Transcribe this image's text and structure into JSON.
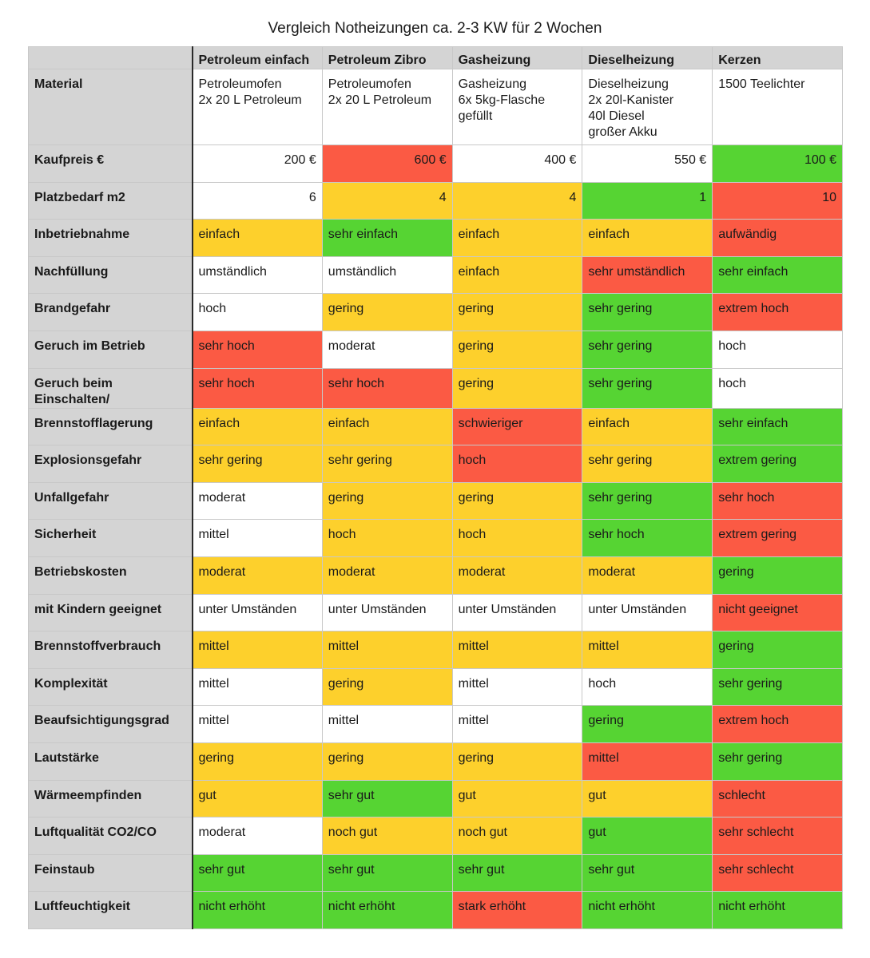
{
  "title": "Vergleich Notheizungen ca. 2-3 KW für 2 Wochen",
  "colors": {
    "white": "#ffffff",
    "yellow": "#fdd02c",
    "green": "#56d433",
    "red": "#fb5a44",
    "header": "#d4d4d4"
  },
  "columns": [
    "Petroleum einfach",
    "Petroleum Zibro",
    "Gasheizung",
    "Dieselheizung",
    "Kerzen"
  ],
  "material": {
    "label": "Material",
    "cells": [
      [
        "Petroleumofen",
        "2x 20 L Petroleum"
      ],
      [
        "Petroleumofen",
        "2x 20 L Petroleum"
      ],
      [
        "Gasheizung",
        "6x 5kg-Flasche",
        "gefüllt"
      ],
      [
        "Dieselheizung",
        "2x 20l-Kanister",
        "40l Diesel",
        "großer Akku"
      ],
      [
        "1500 Teelichter"
      ]
    ]
  },
  "rows": [
    {
      "label": "Kaufpreis €",
      "numeric": true,
      "cells": [
        {
          "text": "200 €",
          "color": "w"
        },
        {
          "text": "600 €",
          "color": "r"
        },
        {
          "text": "400 €",
          "color": "w"
        },
        {
          "text": "550 €",
          "color": "w"
        },
        {
          "text": "100 €",
          "color": "g"
        }
      ]
    },
    {
      "label": "Platzbedarf m2",
      "numeric": true,
      "cells": [
        {
          "text": "6",
          "color": "w"
        },
        {
          "text": "4",
          "color": "y"
        },
        {
          "text": "4",
          "color": "y"
        },
        {
          "text": "1",
          "color": "g"
        },
        {
          "text": "10",
          "color": "r"
        }
      ]
    },
    {
      "label": "Inbetriebnahme",
      "cells": [
        {
          "text": "einfach",
          "color": "y"
        },
        {
          "text": "sehr einfach",
          "color": "g"
        },
        {
          "text": "einfach",
          "color": "y"
        },
        {
          "text": "einfach",
          "color": "y"
        },
        {
          "text": "aufwändig",
          "color": "r"
        }
      ]
    },
    {
      "label": "Nachfüllung",
      "cells": [
        {
          "text": "umständlich",
          "color": "w"
        },
        {
          "text": "umständlich",
          "color": "w"
        },
        {
          "text": "einfach",
          "color": "y"
        },
        {
          "text": "sehr umständlich",
          "color": "r"
        },
        {
          "text": "sehr einfach",
          "color": "g"
        }
      ]
    },
    {
      "label": "Brandgefahr",
      "cells": [
        {
          "text": "hoch",
          "color": "w"
        },
        {
          "text": "gering",
          "color": "y"
        },
        {
          "text": "gering",
          "color": "y"
        },
        {
          "text": "sehr gering",
          "color": "g"
        },
        {
          "text": "extrem hoch",
          "color": "r"
        }
      ]
    },
    {
      "label": "Geruch im Betrieb",
      "cells": [
        {
          "text": "sehr hoch",
          "color": "r"
        },
        {
          "text": "moderat",
          "color": "w"
        },
        {
          "text": "gering",
          "color": "y"
        },
        {
          "text": "sehr gering",
          "color": "g"
        },
        {
          "text": "hoch",
          "color": "w"
        }
      ]
    },
    {
      "label": "Geruch beim Einschalten/",
      "cells": [
        {
          "text": "sehr hoch",
          "color": "r"
        },
        {
          "text": "sehr hoch",
          "color": "r"
        },
        {
          "text": "gering",
          "color": "y"
        },
        {
          "text": "sehr gering",
          "color": "g"
        },
        {
          "text": "hoch",
          "color": "w"
        }
      ]
    },
    {
      "label": "Brennstofflagerung",
      "cells": [
        {
          "text": "einfach",
          "color": "y"
        },
        {
          "text": "einfach",
          "color": "y"
        },
        {
          "text": "schwieriger",
          "color": "r"
        },
        {
          "text": "einfach",
          "color": "y"
        },
        {
          "text": "sehr einfach",
          "color": "g"
        }
      ]
    },
    {
      "label": "Explosionsgefahr",
      "cells": [
        {
          "text": "sehr gering",
          "color": "y"
        },
        {
          "text": "sehr gering",
          "color": "y"
        },
        {
          "text": "hoch",
          "color": "r"
        },
        {
          "text": "sehr gering",
          "color": "y"
        },
        {
          "text": "extrem gering",
          "color": "g"
        }
      ]
    },
    {
      "label": "Unfallgefahr",
      "cells": [
        {
          "text": "moderat",
          "color": "w"
        },
        {
          "text": "gering",
          "color": "y"
        },
        {
          "text": "gering",
          "color": "y"
        },
        {
          "text": "sehr gering",
          "color": "g"
        },
        {
          "text": "sehr hoch",
          "color": "r"
        }
      ]
    },
    {
      "label": "Sicherheit",
      "cells": [
        {
          "text": "mittel",
          "color": "w"
        },
        {
          "text": "hoch",
          "color": "y"
        },
        {
          "text": "hoch",
          "color": "y"
        },
        {
          "text": "sehr hoch",
          "color": "g"
        },
        {
          "text": "extrem gering",
          "color": "r"
        }
      ]
    },
    {
      "label": "Betriebskosten",
      "cells": [
        {
          "text": "moderat",
          "color": "y"
        },
        {
          "text": "moderat",
          "color": "y"
        },
        {
          "text": "moderat",
          "color": "y"
        },
        {
          "text": "moderat",
          "color": "y"
        },
        {
          "text": "gering",
          "color": "g"
        }
      ]
    },
    {
      "label": "mit Kindern geeignet",
      "cells": [
        {
          "text": "unter Umständen",
          "color": "w"
        },
        {
          "text": "unter Umständen",
          "color": "w"
        },
        {
          "text": "unter Umständen",
          "color": "w"
        },
        {
          "text": "unter Umständen",
          "color": "w"
        },
        {
          "text": "nicht geeignet",
          "color": "r"
        }
      ]
    },
    {
      "label": "Brennstoffverbrauch",
      "cells": [
        {
          "text": "mittel",
          "color": "y"
        },
        {
          "text": "mittel",
          "color": "y"
        },
        {
          "text": "mittel",
          "color": "y"
        },
        {
          "text": "mittel",
          "color": "y"
        },
        {
          "text": "gering",
          "color": "g"
        }
      ]
    },
    {
      "label": "Komplexität",
      "cells": [
        {
          "text": "mittel",
          "color": "w"
        },
        {
          "text": "gering",
          "color": "y"
        },
        {
          "text": "mittel",
          "color": "w"
        },
        {
          "text": "hoch",
          "color": "w"
        },
        {
          "text": "sehr gering",
          "color": "g"
        }
      ]
    },
    {
      "label": "Beaufsichtigungsgrad",
      "cells": [
        {
          "text": "mittel",
          "color": "w"
        },
        {
          "text": "mittel",
          "color": "w"
        },
        {
          "text": "mittel",
          "color": "w"
        },
        {
          "text": "gering",
          "color": "g"
        },
        {
          "text": "extrem hoch",
          "color": "r"
        }
      ]
    },
    {
      "label": "Lautstärke",
      "cells": [
        {
          "text": "gering",
          "color": "y"
        },
        {
          "text": "gering",
          "color": "y"
        },
        {
          "text": "gering",
          "color": "y"
        },
        {
          "text": "mittel",
          "color": "r"
        },
        {
          "text": "sehr gering",
          "color": "g"
        }
      ]
    },
    {
      "label": "Wärmeempfinden",
      "cells": [
        {
          "text": "gut",
          "color": "y"
        },
        {
          "text": "sehr gut",
          "color": "g"
        },
        {
          "text": "gut",
          "color": "y"
        },
        {
          "text": "gut",
          "color": "y"
        },
        {
          "text": "schlecht",
          "color": "r"
        }
      ]
    },
    {
      "label": "Luftqualität CO2/CO",
      "cells": [
        {
          "text": "moderat",
          "color": "w"
        },
        {
          "text": "noch gut",
          "color": "y"
        },
        {
          "text": "noch gut",
          "color": "y"
        },
        {
          "text": "gut",
          "color": "g"
        },
        {
          "text": "sehr schlecht",
          "color": "r"
        }
      ]
    },
    {
      "label": "Feinstaub",
      "cells": [
        {
          "text": "sehr gut",
          "color": "g"
        },
        {
          "text": "sehr gut",
          "color": "g"
        },
        {
          "text": "sehr gut",
          "color": "g"
        },
        {
          "text": "sehr gut",
          "color": "g"
        },
        {
          "text": "sehr schlecht",
          "color": "r"
        }
      ]
    },
    {
      "label": "Luftfeuchtigkeit",
      "cells": [
        {
          "text": "nicht erhöht",
          "color": "g"
        },
        {
          "text": "nicht erhöht",
          "color": "g"
        },
        {
          "text": "stark erhöht",
          "color": "r"
        },
        {
          "text": "nicht erhöht",
          "color": "g"
        },
        {
          "text": "nicht erhöht",
          "color": "g"
        }
      ]
    }
  ]
}
